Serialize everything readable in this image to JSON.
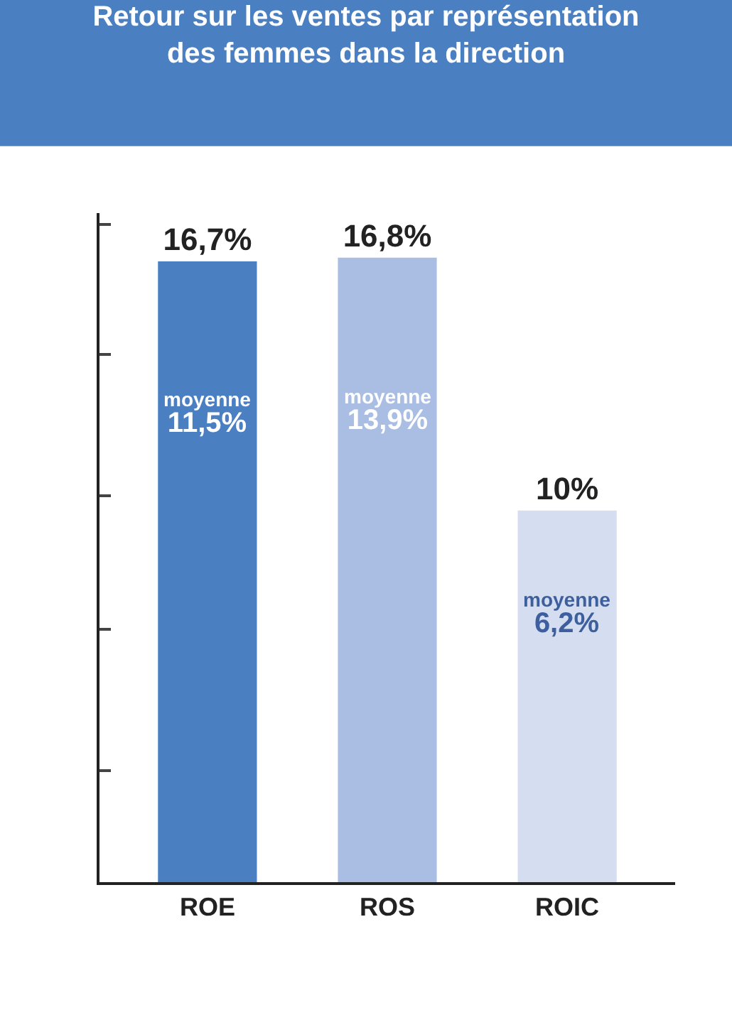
{
  "chart_data": {
    "type": "bar",
    "title": "Retour sur les ventes par représentation\ndes femmes dans la direction",
    "categories": [
      "ROE",
      "ROS",
      "ROIC"
    ],
    "values": [
      16.7,
      16.8,
      10
    ],
    "colors": [
      "#4a7fc1",
      "#aabee4",
      "#d5ddf0"
    ],
    "value_labels": [
      "16,7%",
      "16,8%",
      "10%"
    ],
    "ylim": [
      0,
      18
    ],
    "yticks": [
      {
        "value": 3,
        "label": null
      },
      {
        "value": 6.8,
        "label": null
      },
      {
        "value": 10.4,
        "label": null
      },
      {
        "value": 14.2,
        "label": null
      },
      {
        "value": 17.7,
        "label": null
      }
    ],
    "annotations": [
      "moyenne\n11,5%",
      "moyenne\n13,9%",
      "moyenne\n6,2%"
    ],
    "legend": false
  }
}
